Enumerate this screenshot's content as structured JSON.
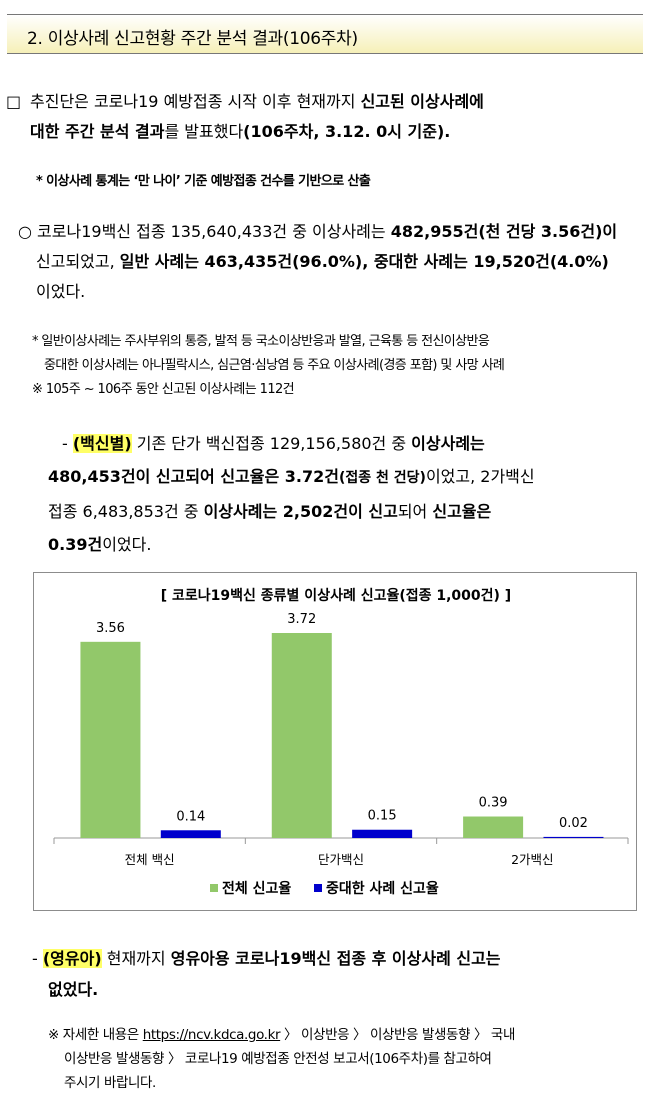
{
  "header": {
    "title": "2. 이상사례 신고현황 주간 분석 결과(106주차)"
  },
  "intro": {
    "bullet": "□",
    "line1_a": "추진단은 코로나19 예방접종 시작 이후 현재까지 ",
    "line1_b": "신고된 이상사례에",
    "line2_a": "대한 주간 분석 결과",
    "line2_b": "를 발표했다",
    "line2_c": "(106주차, 3.12. 0시 기준)."
  },
  "note1": "* 이상사례 통계는 ‘만 나이’ 기준 예방접종 건수를 기반으로 산출",
  "summary": {
    "bullet": "○",
    "line1_a": " 코로나19백신 접종 135,640,433건 중 이상사례는 ",
    "line1_b": "482,955건(천 건당 3.56건)이",
    "line2_a": "신고되었고, ",
    "line2_b": "일반 사례는 463,435건(96.0%), 중대한 사례는 19,520건(4.0%)",
    "line3": "이었다."
  },
  "note2": {
    "r1": "* 일반이상사례는 주사부위의 통증, 발적 등 국소이상반응과 발열, 근육통 등 전신이상반응",
    "r2": "중대한 이상사례는 아나필락시스, 심근염·심낭염 등 주요 이상사례(경증 포함) 및 사망 사례",
    "r3": "※ 105주 ~ 106주 동안 신고된 이상사례는 112건"
  },
  "vaccine": {
    "dash": "- ",
    "tag": "(백신별)",
    "line1_a": " 기존 단가 백신접종 129,156,580건 중 ",
    "line1_b": "이상사례는",
    "line2_a": "480,453건이 신고되어 신고율은 3.72건",
    "line2_b": "(접종 천 건당)",
    "line2_c": "이었고, 2가백신",
    "line3_a": "접종 6,483,853건 중 ",
    "line3_b": "이상사례는 2,502건이 신고",
    "line3_c": "되어 ",
    "line3_d": "신고율은",
    "line4_a": "0.39건",
    "line4_b": "이었다."
  },
  "chart_data": {
    "type": "bar",
    "title": "[ 코로나19백신 종류별 이상사례 신고율(접종 1,000건) ]",
    "categories": [
      "전체 백신",
      "단가백신",
      "2가백신"
    ],
    "series": [
      {
        "name": "전체  신고율",
        "values": [
          3.56,
          3.72,
          0.39
        ],
        "labels": [
          "3.56",
          "3.72",
          "0.39"
        ],
        "color": "#92c86a"
      },
      {
        "name": "중대한 사례 신고율",
        "values": [
          0.14,
          0.15,
          0.02
        ],
        "labels": [
          "0.14",
          "0.15",
          "0.02"
        ],
        "color": "#0000cc"
      }
    ],
    "ylim": [
      0,
      3.72
    ],
    "grid": false,
    "legend_position": "bottom"
  },
  "infant": {
    "dash": "- ",
    "tag": "(영유아)",
    "line1_a": " 현재까지 ",
    "line1_b": "영유아용 코로나19백신 접종 후 이상사례 신고는",
    "line2": "없었다."
  },
  "note3": {
    "prefix": "※ 자세한 내용은 ",
    "link": "https://ncv.kdca.go.kr",
    "r1_rest": " 〉 이상반응 〉 이상반응 발생동향 〉 국내",
    "r2": "이상반응 발생동향 〉 코로나19 예방접종 안전성 보고서(106주차)를 참고하여",
    "r3": "주시기 바랍니다."
  }
}
